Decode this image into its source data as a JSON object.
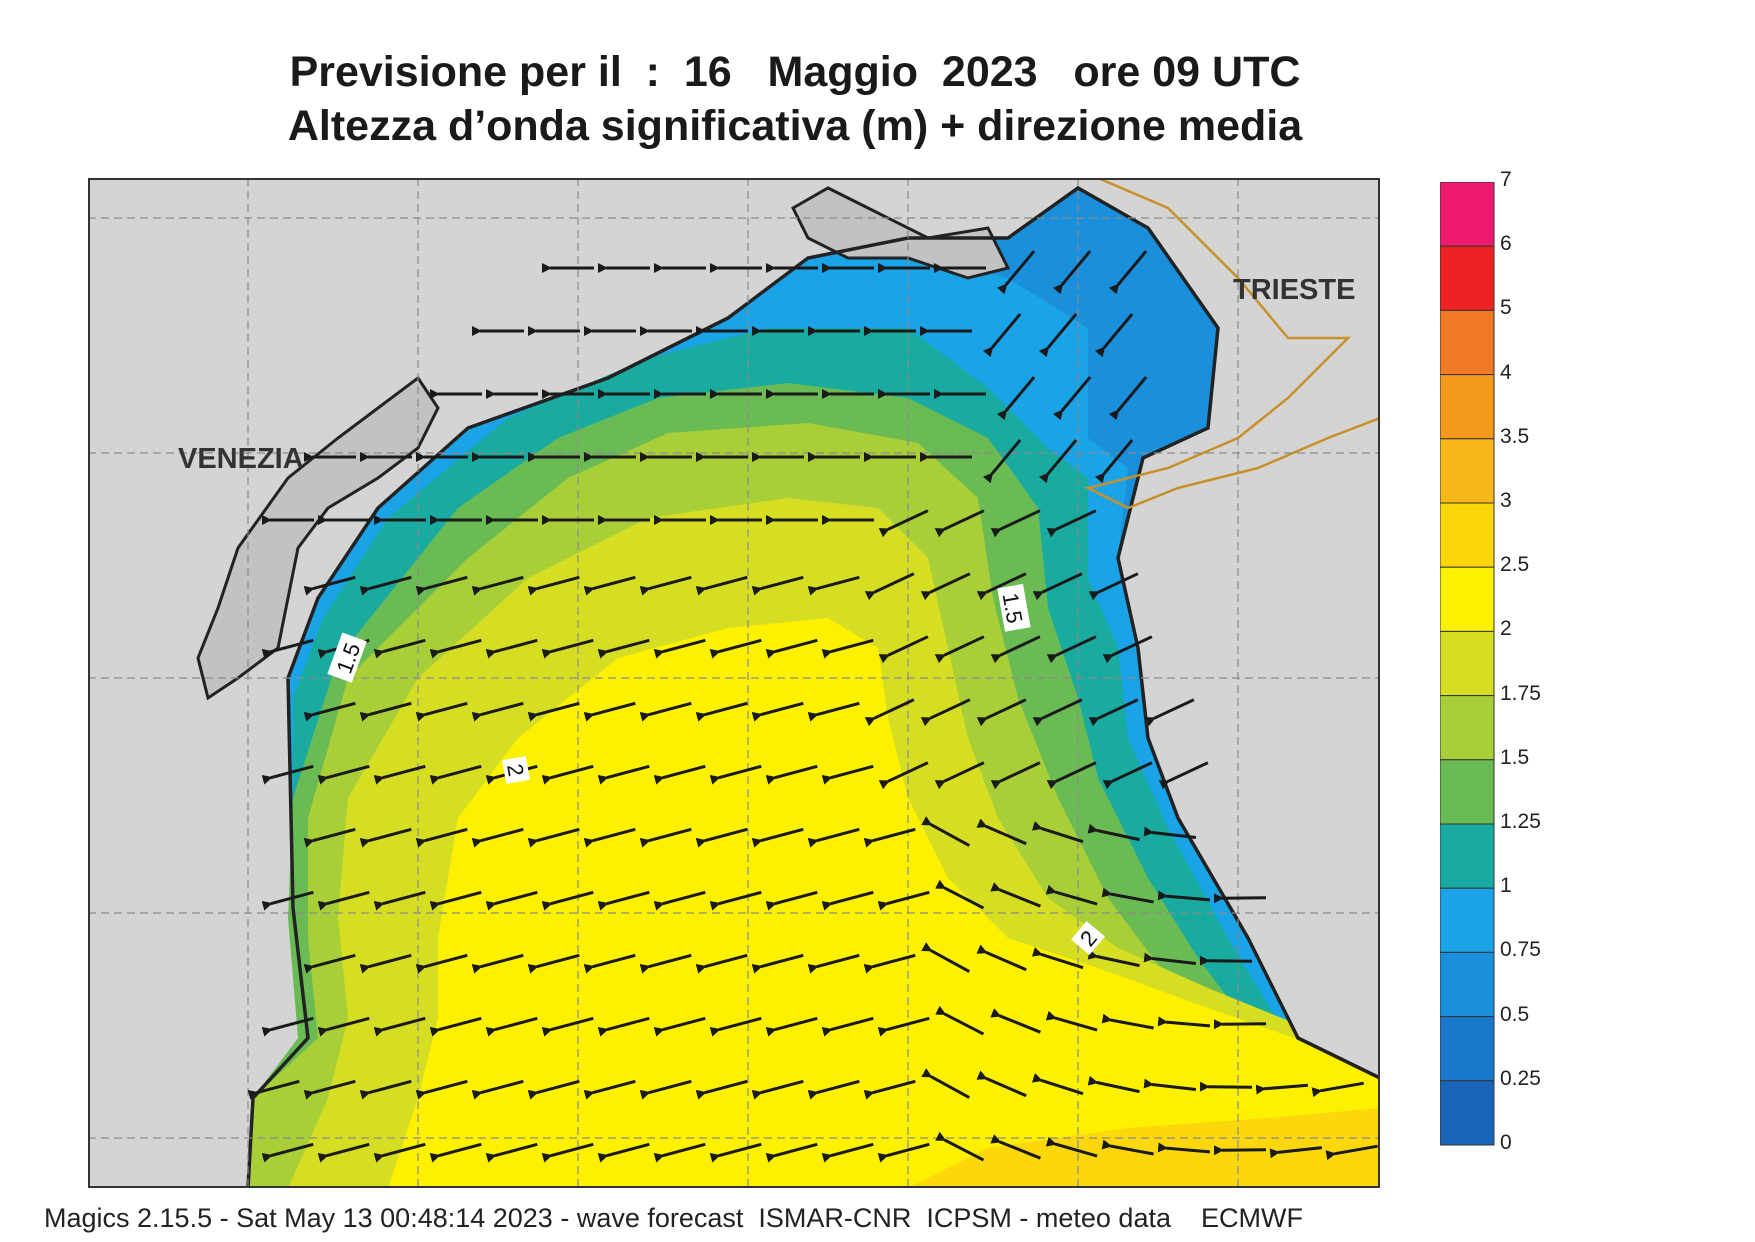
{
  "header": {
    "title_line1": "Previsione per il  :  16   Maggio  2023   ore 09 UTC",
    "title_line2": "Altezza d’onda significativa (m) + direzione media"
  },
  "map": {
    "places": [
      "VENEZIA",
      "TRIESTE"
    ],
    "contour_labels": [
      "1.5",
      "1.5",
      "2",
      "2"
    ],
    "land_color": "#d4d4d4",
    "coast_color": "#222222",
    "border_color": "#c8902a",
    "arrow_color": "#1a1a1a"
  },
  "legend": {
    "labels": [
      "7",
      "6",
      "5",
      "4",
      "3.5",
      "3",
      "2.5",
      "2",
      "1.75",
      "1.5",
      "1.25",
      "1",
      "0.75",
      "0.5",
      "0.25",
      "0"
    ],
    "colors": [
      "#ee1a6e",
      "#ee2222",
      "#f07a26",
      "#f39a1c",
      "#f7b818",
      "#fbd70c",
      "#fef100",
      "#d5de22",
      "#a8ce38",
      "#6bbb54",
      "#1aaba0",
      "#1aa3e6",
      "#1a8fdc",
      "#1a78cc",
      "#1a64b8"
    ]
  },
  "footer": {
    "text": "Magics 2.15.5 - Sat May 13 00:48:14 2023 - wave forecast  ISMAR-CNR  ICPSM - meteo data    ECMWF"
  }
}
